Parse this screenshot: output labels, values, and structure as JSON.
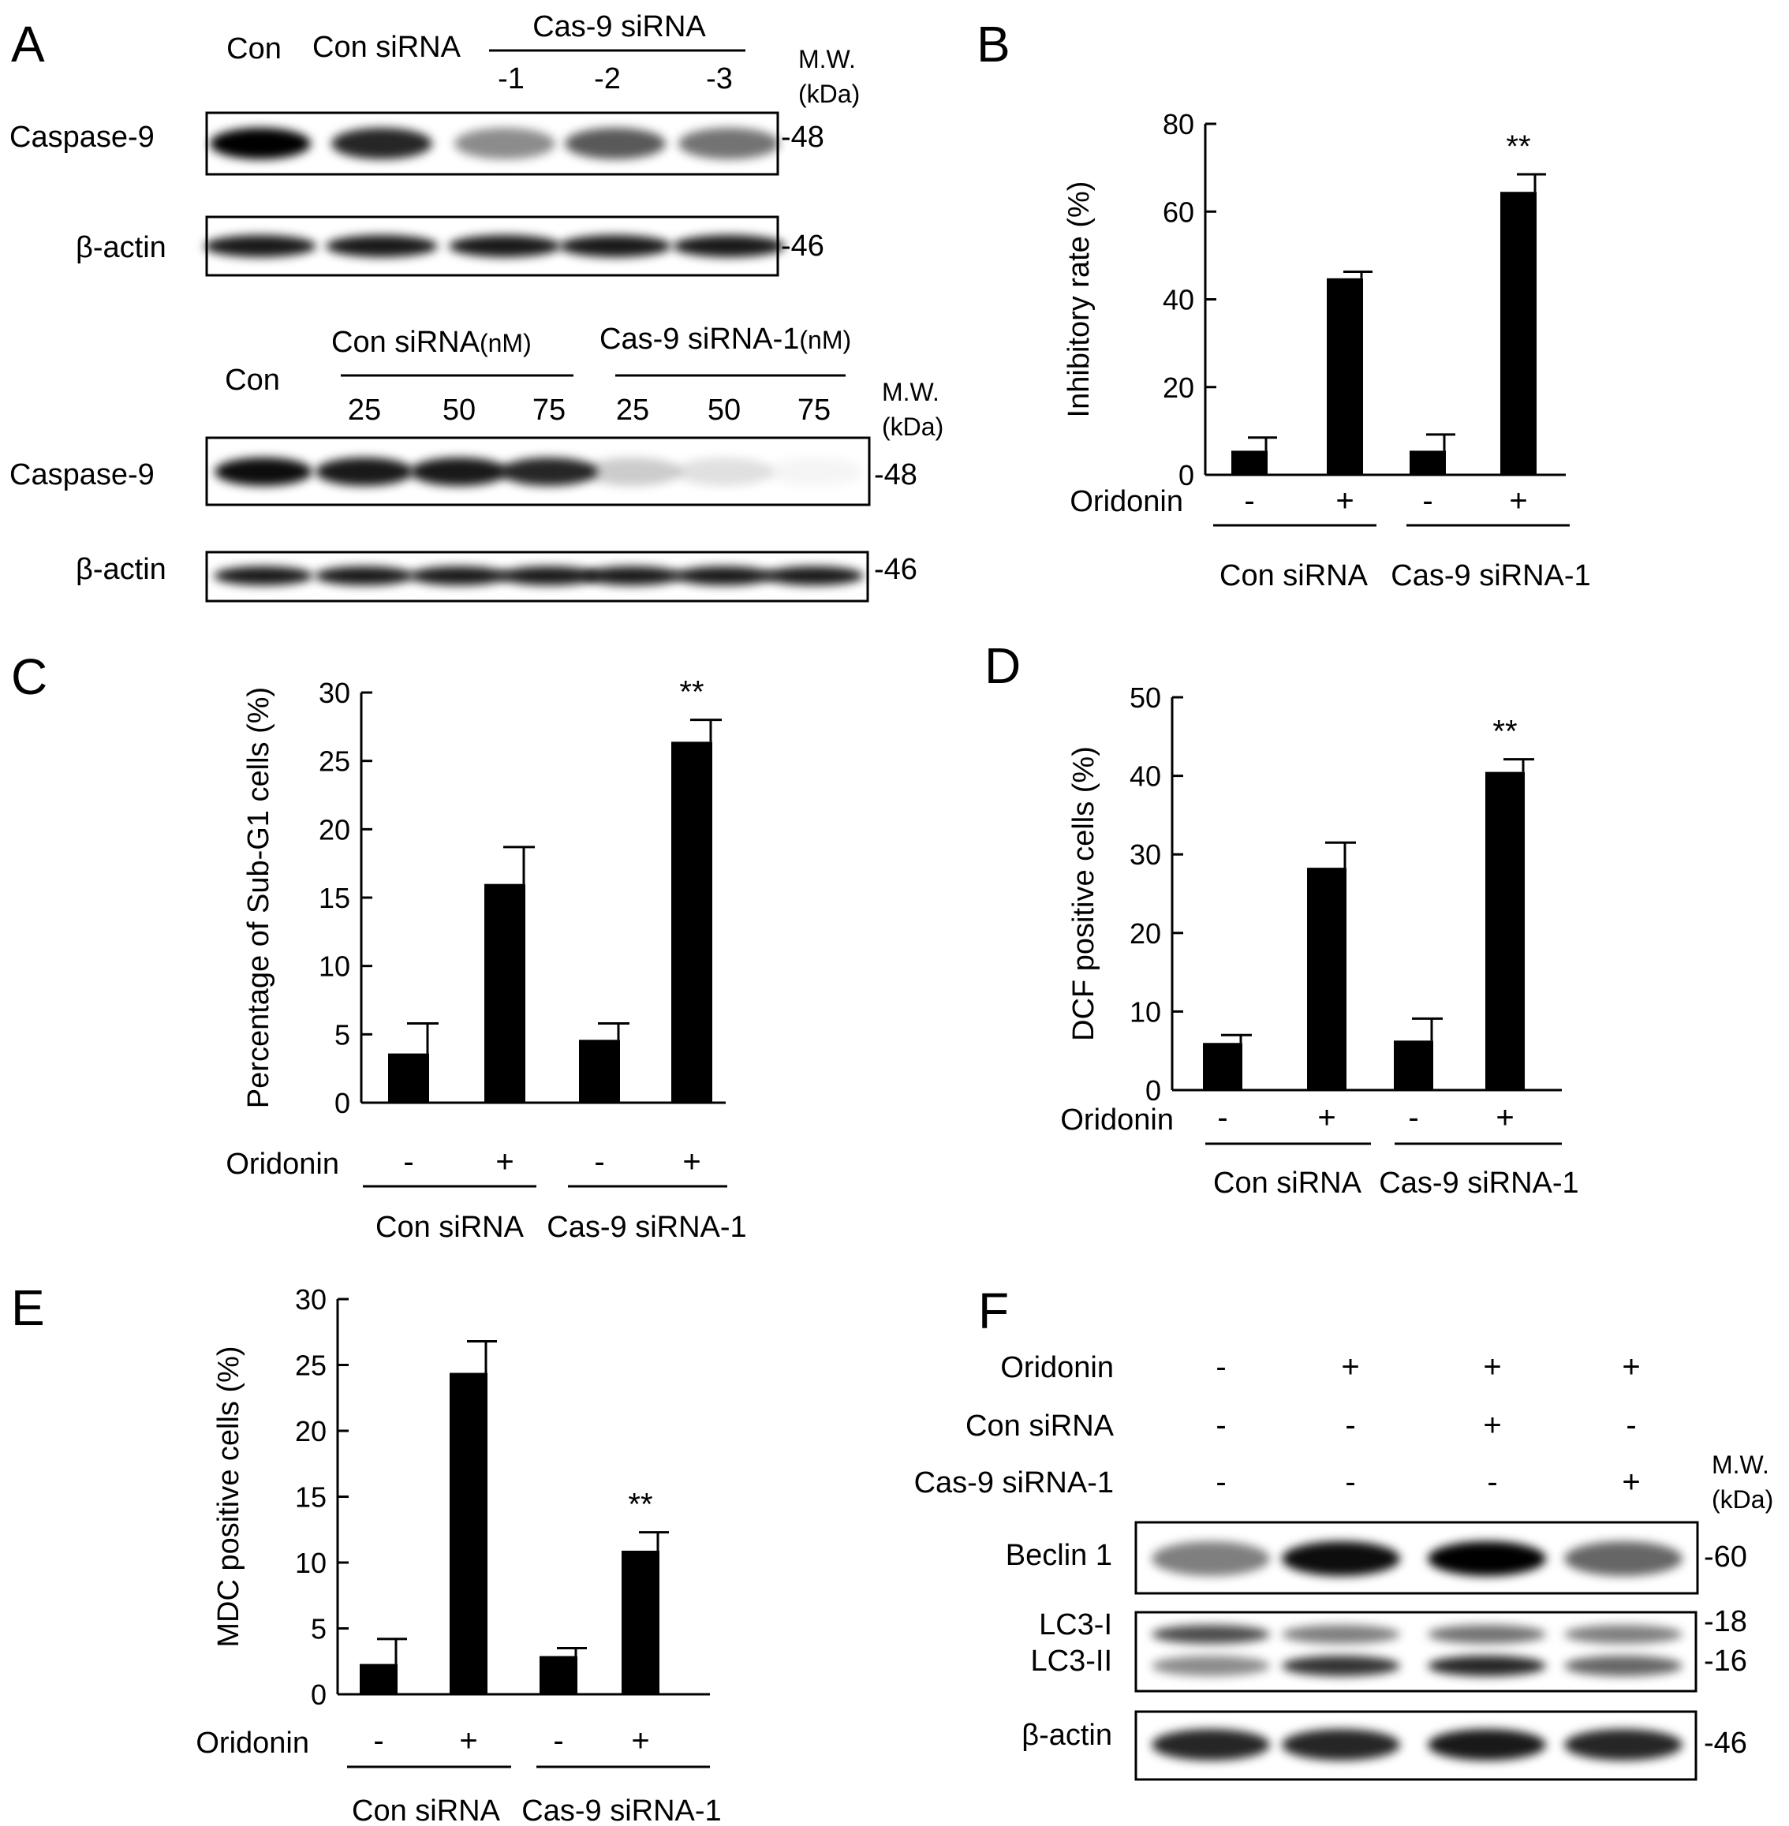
{
  "figure": {
    "panels": {
      "A": {
        "letter": "A",
        "blot1": {
          "lane_labels": [
            "Con",
            "Con siRNA"
          ],
          "group_label": "Cas-9 siRNA",
          "group_lanes": [
            "-1",
            "-2",
            "-3"
          ],
          "mw_label": "M.W.",
          "mw_unit": "(kDa)",
          "rows": [
            {
              "label": "Caspase-9",
              "mw": "-48",
              "intensity": [
                1.0,
                0.85,
                0.45,
                0.65,
                0.55
              ]
            },
            {
              "label": "β-actin",
              "mw": "-46",
              "intensity": [
                0.9,
                0.9,
                0.9,
                0.9,
                0.9
              ]
            }
          ]
        },
        "blot2": {
          "con_label": "Con",
          "group1_label": "Con siRNA",
          "group1_unit": "(nM)",
          "group2_label": "Cas-9 siRNA-1",
          "group2_unit": "(nM)",
          "doses": [
            "25",
            "50",
            "75",
            "25",
            "50",
            "75"
          ],
          "mw_label": "M.W.",
          "mw_unit": "(kDa)",
          "rows": [
            {
              "label": "Caspase-9",
              "mw": "-48",
              "intensity": [
                0.95,
                0.9,
                0.9,
                0.85,
                0.2,
                0.12,
                0.04
              ]
            },
            {
              "label": "β-actin",
              "mw": "-46",
              "intensity": [
                0.9,
                0.9,
                0.9,
                0.9,
                0.9,
                0.9,
                0.9
              ]
            }
          ]
        }
      },
      "F": {
        "letter": "F",
        "treatments": [
          {
            "label": "Oridonin",
            "signs": [
              "-",
              "+",
              "+",
              "+"
            ]
          },
          {
            "label": "Con siRNA",
            "signs": [
              "-",
              "-",
              "+",
              "-"
            ]
          },
          {
            "label": "Cas-9 siRNA-1",
            "signs": [
              "-",
              "-",
              "-",
              "+"
            ]
          }
        ],
        "mw_label": "M.W.",
        "mw_unit": "(kDa)",
        "blots": [
          {
            "labels": [
              "Beclin 1"
            ],
            "mws": [
              "-60"
            ],
            "intensity": [
              0.5,
              0.95,
              1.0,
              0.6
            ]
          },
          {
            "labels": [
              "LC3-I",
              "LC3-II"
            ],
            "mws": [
              "-18",
              "-16"
            ],
            "intensity": [
              0.7,
              0.5,
              0.55,
              0.5
            ]
          },
          {
            "labels": [
              "β-actin"
            ],
            "mws": [
              "-46"
            ],
            "intensity": [
              0.85,
              0.85,
              0.9,
              0.85
            ]
          }
        ]
      }
    }
  },
  "chart_data": [
    {
      "panel": "B",
      "type": "bar",
      "ylabel": "Inhibitory rate (%)",
      "ylim": [
        0,
        80
      ],
      "yticks": [
        "0",
        "20",
        "40",
        "60",
        "80"
      ],
      "treatment_label": "Oridonin",
      "categories": [
        "-",
        "+",
        "-",
        "+"
      ],
      "groups": [
        "Con siRNA",
        "Cas-9 siRNA-1"
      ],
      "values": [
        5.5,
        44.8,
        5.5,
        64.5
      ],
      "errors": [
        3.0,
        1.5,
        3.7,
        4.0
      ],
      "annotations": [
        "",
        "",
        "",
        "**"
      ]
    },
    {
      "panel": "C",
      "type": "bar",
      "ylabel": "Percentage of Sub-G1 cells (%)",
      "ylim": [
        0,
        30
      ],
      "yticks": [
        "0",
        "5",
        "10",
        "15",
        "20",
        "25",
        "30"
      ],
      "treatment_label": "Oridonin",
      "categories": [
        "-",
        "+",
        "-",
        "+"
      ],
      "groups": [
        "Con siRNA",
        "Cas-9 siRNA-1"
      ],
      "values": [
        3.6,
        16.0,
        4.6,
        26.4
      ],
      "errors": [
        2.2,
        2.7,
        1.2,
        1.6
      ],
      "annotations": [
        "",
        "",
        "",
        "**"
      ]
    },
    {
      "panel": "D",
      "type": "bar",
      "ylabel": "DCF positive cells (%)",
      "ylim": [
        0,
        50
      ],
      "yticks": [
        "0",
        "10",
        "20",
        "30",
        "40",
        "50"
      ],
      "treatment_label": "Oridonin",
      "categories": [
        "-",
        "+",
        "-",
        "+"
      ],
      "groups": [
        "Con siRNA",
        "Cas-9 siRNA-1"
      ],
      "values": [
        6.0,
        28.3,
        6.3,
        40.5
      ],
      "errors": [
        1.0,
        3.2,
        2.8,
        1.6
      ],
      "annotations": [
        "",
        "",
        "",
        "**"
      ]
    },
    {
      "panel": "E",
      "type": "bar",
      "ylabel": "MDC positive cells (%)",
      "ylim": [
        0,
        30
      ],
      "yticks": [
        "0",
        "5",
        "10",
        "15",
        "20",
        "25",
        "30"
      ],
      "treatment_label": "Oridonin",
      "categories": [
        "-",
        "+",
        "-",
        "+"
      ],
      "groups": [
        "Con siRNA",
        "Cas-9 siRNA-1"
      ],
      "values": [
        2.3,
        24.4,
        2.9,
        10.9
      ],
      "errors": [
        1.9,
        2.4,
        0.6,
        1.4
      ],
      "annotations": [
        "",
        "",
        "",
        "**"
      ]
    }
  ]
}
